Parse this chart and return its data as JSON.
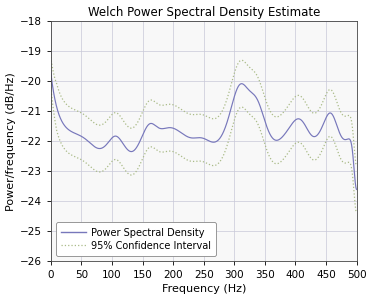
{
  "title": "Welch Power Spectral Density Estimate",
  "xlabel": "Frequency (Hz)",
  "ylabel": "Power/frequency (dB/Hz)",
  "xlim": [
    0,
    500
  ],
  "ylim": [
    -26,
    -18
  ],
  "yticks": [
    -26,
    -25,
    -24,
    -23,
    -22,
    -21,
    -20,
    -19,
    -18
  ],
  "xticks": [
    0,
    50,
    100,
    150,
    200,
    250,
    300,
    350,
    400,
    450,
    500
  ],
  "psd_color": "#7777bb",
  "ci_color": "#aabb88",
  "legend_labels": [
    "Power Spectral Density",
    "95% Confidence Interval"
  ],
  "title_fontsize": 8.5,
  "label_fontsize": 8.0,
  "tick_fontsize": 7.5,
  "ax_bg": "#f8f8f8"
}
